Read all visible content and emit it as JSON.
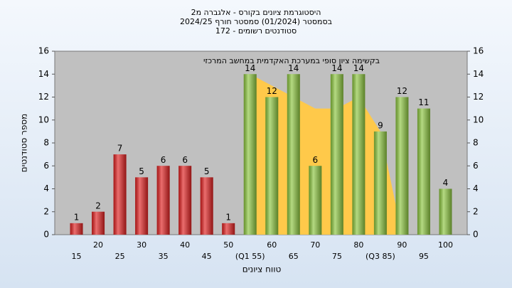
{
  "chart_data": {
    "type": "bar",
    "title": "היסטוגרמת ציונים בקורס - אלגברה מ2",
    "subtitle": "בסמסטר  (01/2024)  סמסטר חורף  2024/25",
    "subtitle2": "סטודנטים רשומים - 172",
    "annotation": "בקשימה  ציון סופי במערכת האקדמית במחשב המרכזי",
    "x_label": "טווח ציונים",
    "y_label": "מספר סטודנטים",
    "categories": [
      "15",
      "20",
      "25",
      "30",
      "35",
      "40",
      "45",
      "50",
      "(Q1 55)",
      "60",
      "65",
      "70",
      "75",
      "80",
      "(Q3 85)",
      "90",
      "95",
      "100"
    ],
    "values": [
      1,
      2,
      7,
      5,
      6,
      6,
      5,
      1,
      14,
      12,
      14,
      6,
      14,
      14,
      9,
      12,
      11,
      4
    ],
    "colors": [
      "#e02020",
      "#e02020",
      "#e02020",
      "#e02020",
      "#e02020",
      "#e02020",
      "#e02020",
      "#e02020",
      "#8cc63f",
      "#8cc63f",
      "#8cc63f",
      "#8cc63f",
      "#8cc63f",
      "#8cc63f",
      "#8cc63f",
      "#8cc63f",
      "#8cc63f",
      "#8cc63f"
    ],
    "area": {
      "color": "#ffc94a",
      "values": [
        null,
        null,
        null,
        null,
        null,
        null,
        null,
        null,
        14,
        13,
        12,
        11,
        11,
        12,
        9,
        0,
        null,
        null
      ]
    },
    "ylim": [
      0,
      16
    ],
    "yticks": [
      0,
      2,
      4,
      6,
      8,
      10,
      12,
      14,
      16
    ],
    "y2lim": [
      0,
      16
    ],
    "y2ticks": [
      0,
      2,
      4,
      6,
      8,
      10,
      12,
      14,
      16
    ],
    "grid": false
  }
}
